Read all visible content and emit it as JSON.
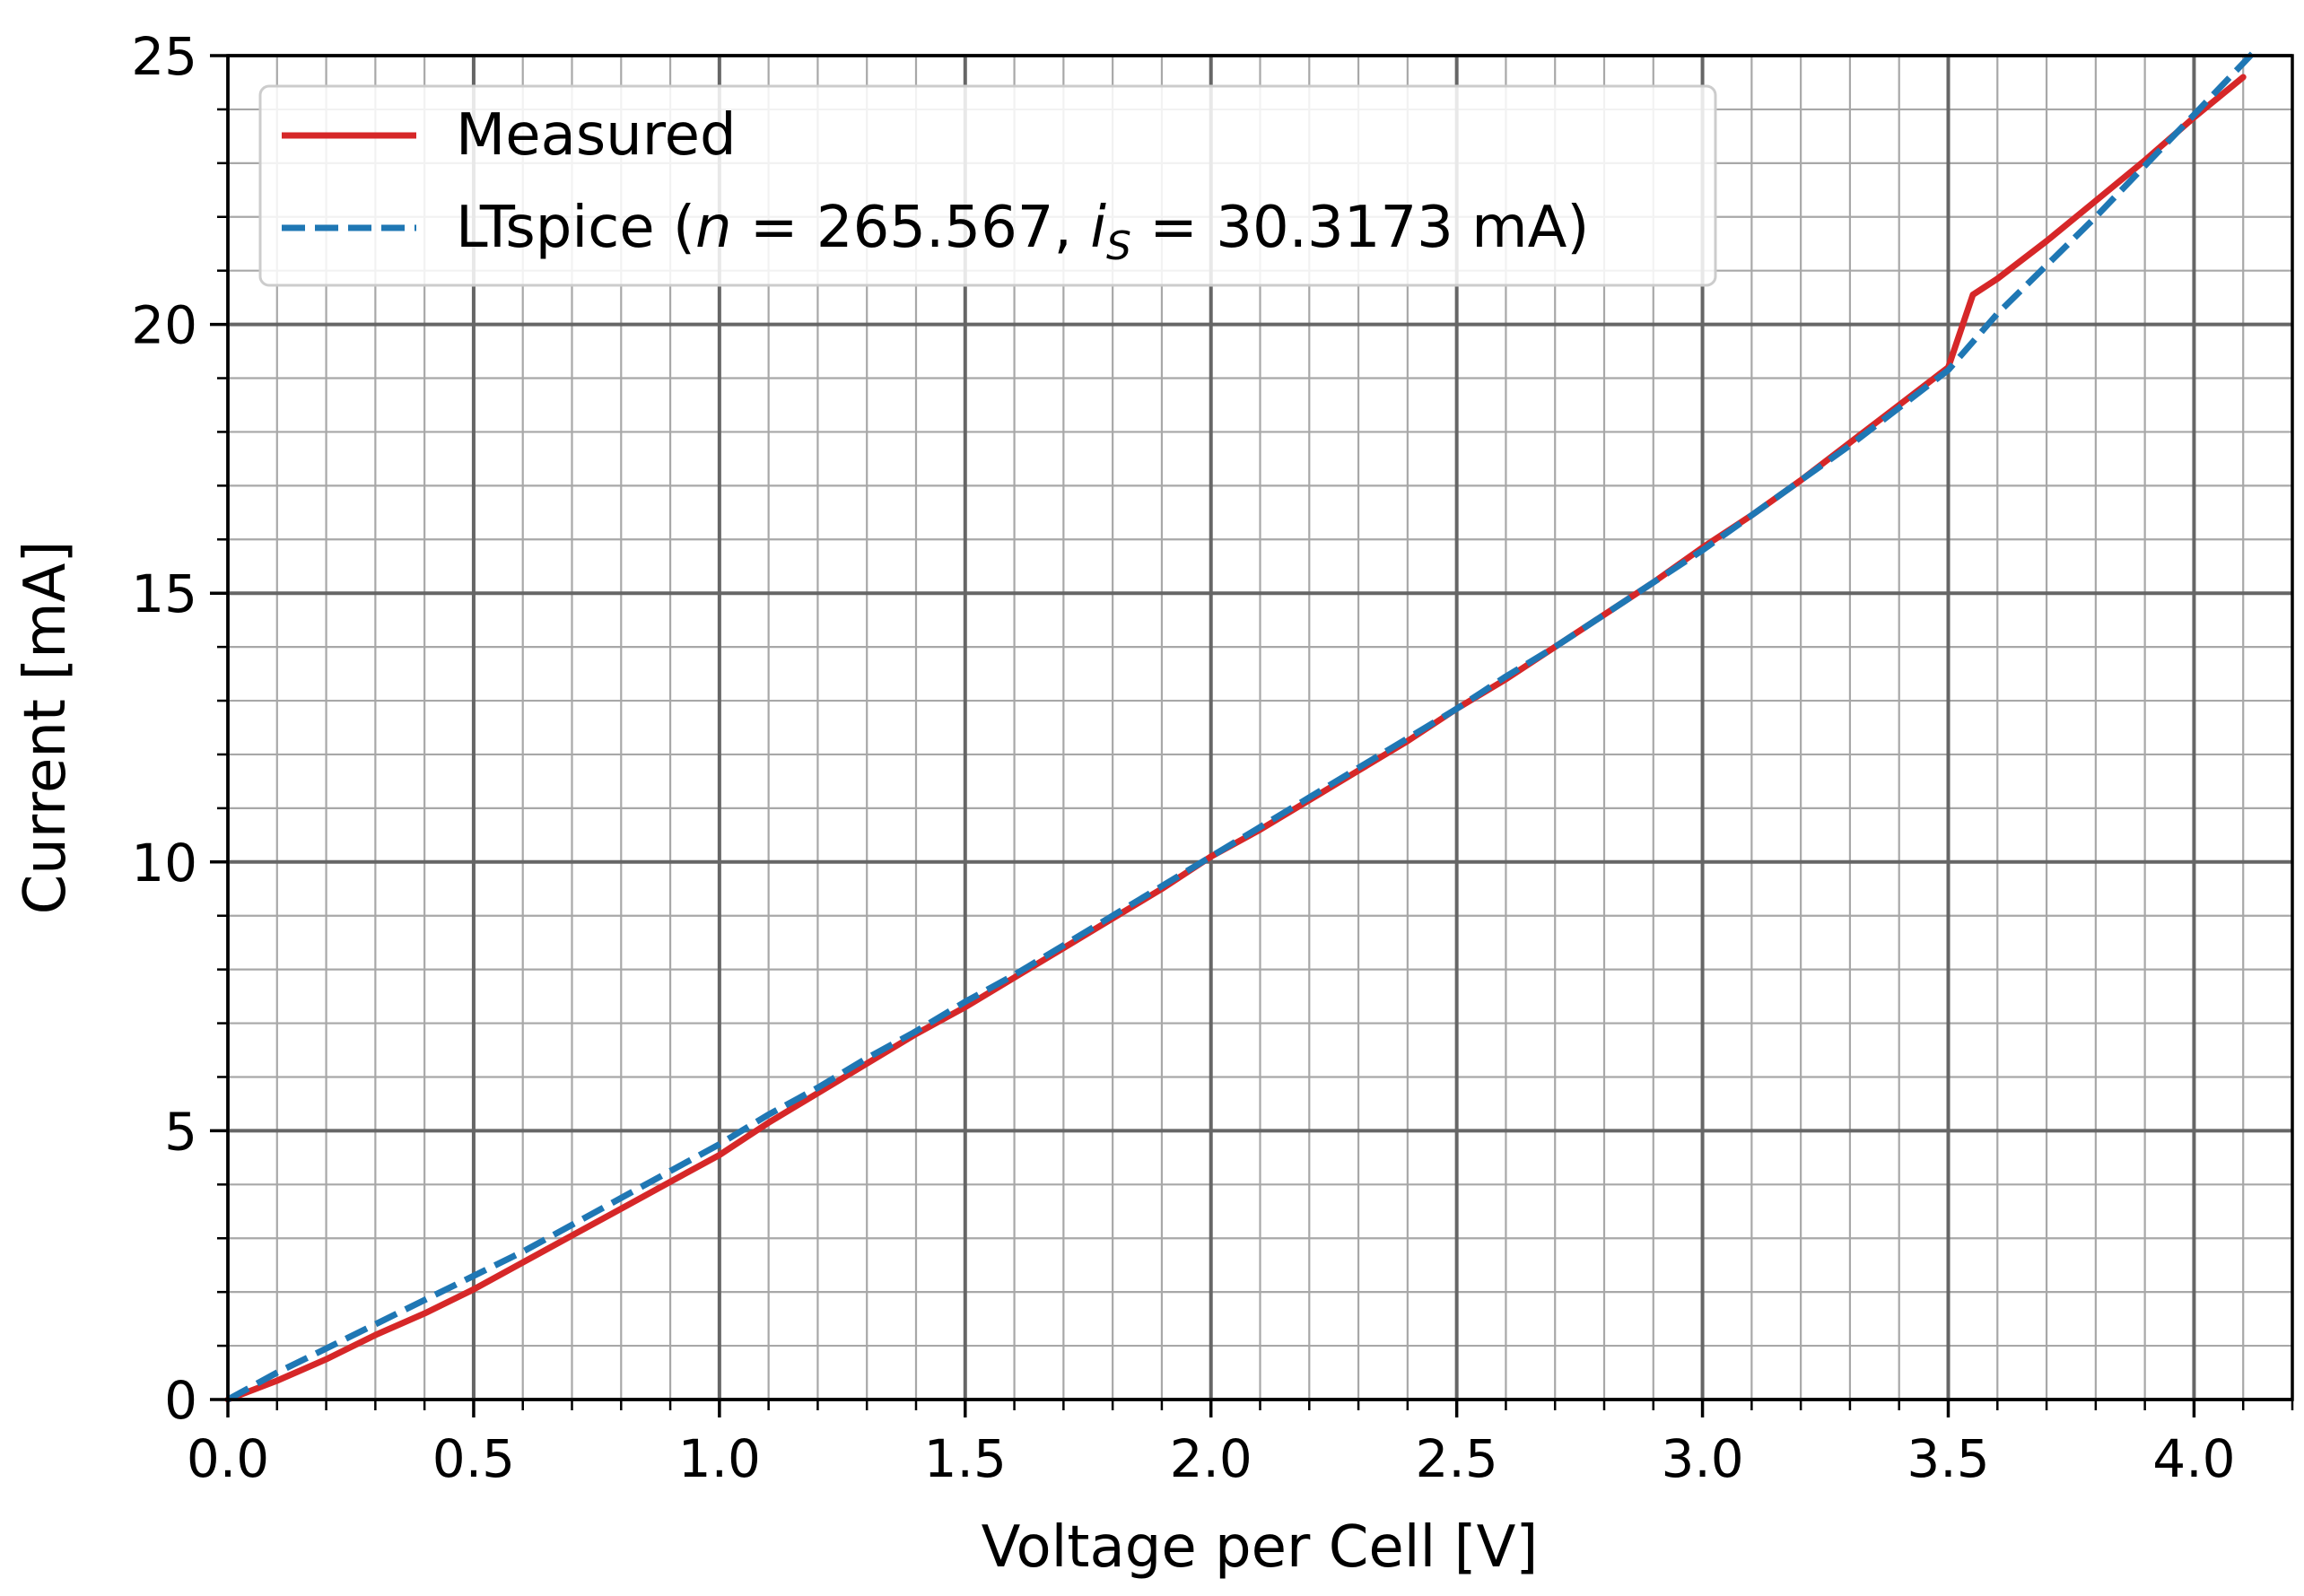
{
  "chart_data": {
    "type": "line",
    "title": "",
    "xlabel": "Voltage per Cell [V]",
    "ylabel": "Current [mA]",
    "xlim": [
      0.0,
      4.2
    ],
    "ylim": [
      0,
      25
    ],
    "x_ticks": [
      "0.0",
      "0.5",
      "1.0",
      "1.5",
      "2.0",
      "2.5",
      "3.0",
      "3.5",
      "4.0"
    ],
    "y_ticks": [
      "0",
      "5",
      "10",
      "15",
      "20",
      "25"
    ],
    "grid": {
      "major": true,
      "minor": true,
      "minor_x_step": 0.1,
      "minor_y_step": 1
    },
    "legend_position": "top-left",
    "series": [
      {
        "name": "Measured",
        "legend_label": "Measured",
        "color": "#d62728",
        "style": "solid",
        "x": [
          0.0,
          0.1,
          0.2,
          0.3,
          0.4,
          0.5,
          0.6,
          0.7,
          0.8,
          0.9,
          1.0,
          1.1,
          1.2,
          1.3,
          1.4,
          1.5,
          1.6,
          1.7,
          1.8,
          1.9,
          2.0,
          2.1,
          2.2,
          2.3,
          2.4,
          2.5,
          2.6,
          2.7,
          2.8,
          2.9,
          3.0,
          3.1,
          3.2,
          3.3,
          3.4,
          3.5,
          3.55,
          3.6,
          3.7,
          3.8,
          3.9,
          4.0,
          4.1
        ],
        "y": [
          0.0,
          0.35,
          0.75,
          1.2,
          1.6,
          2.05,
          2.55,
          3.05,
          3.55,
          4.05,
          4.55,
          5.15,
          5.7,
          6.25,
          6.8,
          7.3,
          7.85,
          8.4,
          8.95,
          9.5,
          10.1,
          10.6,
          11.15,
          11.7,
          12.25,
          12.85,
          13.4,
          14.0,
          14.6,
          15.2,
          15.85,
          16.45,
          17.1,
          17.8,
          18.5,
          19.2,
          20.55,
          20.85,
          21.55,
          22.3,
          23.05,
          23.85,
          24.6
        ]
      },
      {
        "name": "LTspice",
        "legend_prefix": "LTspice (",
        "legend_n_symbol": "n",
        "legend_n_text": " = 265.567, ",
        "legend_i_symbol": "i",
        "legend_i_subscript": "S",
        "legend_i_text": " = 30.3173 mA)",
        "color": "#1f77b4",
        "style": "dashed",
        "x": [
          0.0,
          0.1,
          0.2,
          0.3,
          0.4,
          0.5,
          0.6,
          0.7,
          0.8,
          0.9,
          1.0,
          1.1,
          1.2,
          1.3,
          1.4,
          1.5,
          1.6,
          1.7,
          1.8,
          1.9,
          2.0,
          2.1,
          2.2,
          2.3,
          2.4,
          2.5,
          2.6,
          2.7,
          2.8,
          2.9,
          3.0,
          3.1,
          3.2,
          3.3,
          3.4,
          3.5,
          3.6,
          3.7,
          3.8,
          3.9,
          4.0,
          4.12
        ],
        "y": [
          0.0,
          0.5,
          0.95,
          1.4,
          1.85,
          2.3,
          2.75,
          3.25,
          3.75,
          4.25,
          4.75,
          5.3,
          5.8,
          6.35,
          6.85,
          7.4,
          7.9,
          8.45,
          9.0,
          9.55,
          10.1,
          10.65,
          11.2,
          11.75,
          12.3,
          12.85,
          13.45,
          14.0,
          14.6,
          15.2,
          15.8,
          16.45,
          17.1,
          17.75,
          18.45,
          19.15,
          20.2,
          21.1,
          22.0,
          22.95,
          23.9,
          25.05
        ]
      }
    ]
  }
}
